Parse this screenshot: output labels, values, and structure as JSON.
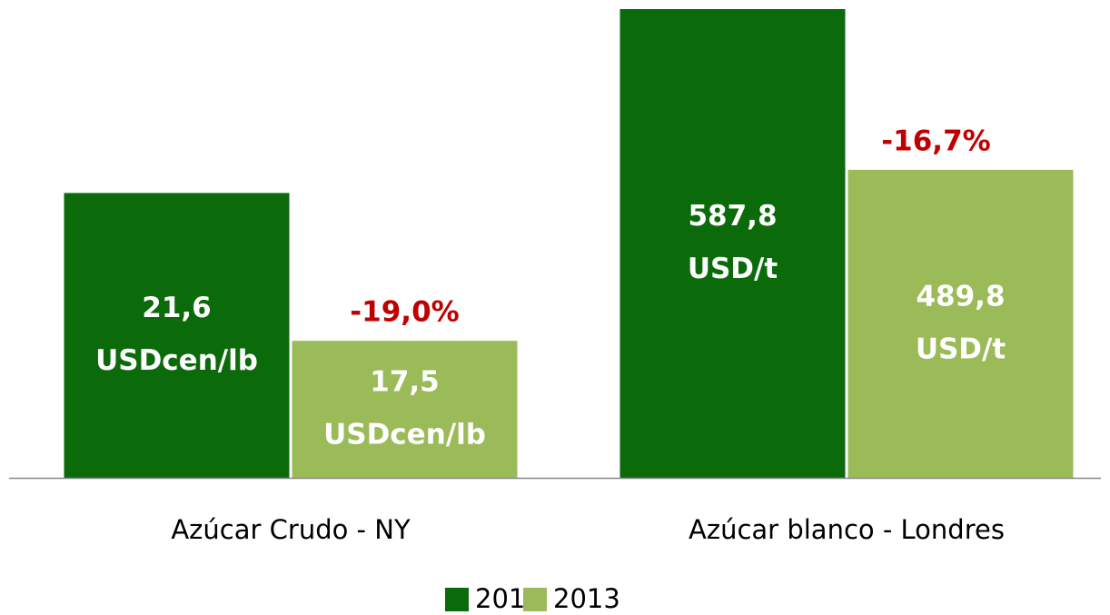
{
  "chart_data": {
    "type": "bar",
    "categories": [
      "Azúcar Crudo - NY",
      "Azúcar blanco - Londres"
    ],
    "series": [
      {
        "name": "2012",
        "color": "#0b6b0b",
        "values": [
          21.6,
          587.8
        ],
        "value_labels": [
          "21,6 USDcen/lb",
          "587,8 USD/t"
        ]
      },
      {
        "name": "2013",
        "color": "#9bbb59",
        "values": [
          17.5,
          489.8
        ],
        "value_labels": [
          "17,5 USDcen/lb",
          "489,8 USD/t"
        ]
      }
    ],
    "annotations": [
      "-19,0%",
      "-16,7%"
    ],
    "ylims": [
      [
        13.7,
        26.7
      ],
      [
        302,
        587.8
      ]
    ],
    "legend": "bottom"
  }
}
